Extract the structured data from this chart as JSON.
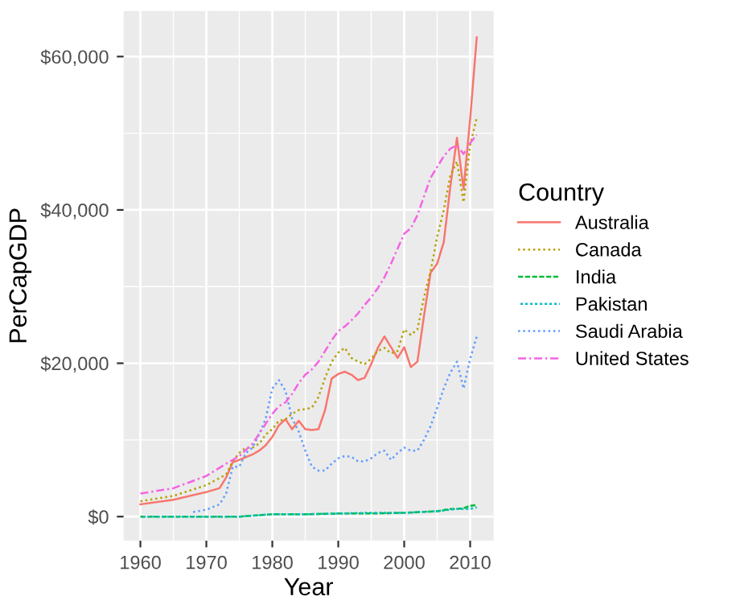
{
  "chart_data": {
    "type": "line",
    "xlabel": "Year",
    "ylabel": "PerCapGDP",
    "legend_title": "Country",
    "legend": "right",
    "grid": true,
    "xlim": [
      1957.45,
      2013.55
    ],
    "xticks": [
      1960,
      1970,
      1980,
      1990,
      2000,
      2010
    ],
    "ylim": [
      -3140,
      65940
    ],
    "yticks": [
      {
        "value": 0,
        "label": "$0"
      },
      {
        "value": 20000,
        "label": "$20,000"
      },
      {
        "value": 40000,
        "label": "$40,000"
      },
      {
        "value": 60000,
        "label": "$60,000"
      }
    ],
    "series": [
      {
        "name": "Australia",
        "color": "#f8766d",
        "line_style": "solid",
        "x": [
          1960,
          1965,
          1970,
          1972,
          1973,
          1974,
          1975,
          1977,
          1978,
          1979,
          1980,
          1981,
          1982,
          1983,
          1984,
          1985,
          1986,
          1987,
          1988,
          1989,
          1990,
          1991,
          1992,
          1993,
          1994,
          1995,
          1996,
          1997,
          1998,
          1999,
          2000,
          2001,
          2002,
          2003,
          2004,
          2005,
          2006,
          2007,
          2008,
          2009,
          2010,
          2011
        ],
        "values": [
          1600,
          2200,
          3200,
          3700,
          5100,
          7100,
          7400,
          8100,
          8600,
          9300,
          10400,
          11900,
          12700,
          11400,
          12500,
          11400,
          11300,
          11400,
          13900,
          18000,
          18600,
          18900,
          18500,
          17800,
          18100,
          19900,
          22000,
          23500,
          22100,
          20700,
          22100,
          19500,
          20200,
          26200,
          31800,
          33000,
          35800,
          43100,
          49400,
          42700,
          51900,
          62500
        ]
      },
      {
        "name": "Canada",
        "color": "#b79f00",
        "line_style": "dotted",
        "x": [
          1960,
          1965,
          1970,
          1973,
          1974,
          1975,
          1976,
          1977,
          1978,
          1979,
          1980,
          1981,
          1982,
          1983,
          1984,
          1985,
          1986,
          1987,
          1988,
          1989,
          1990,
          1991,
          1992,
          1993,
          1994,
          1995,
          1996,
          1997,
          1998,
          1999,
          2000,
          2001,
          2002,
          2003,
          2004,
          2005,
          2006,
          2007,
          2008,
          2009,
          2010,
          2011
        ],
        "values": [
          2000,
          2700,
          4100,
          5500,
          7200,
          8300,
          9000,
          9000,
          9500,
          10700,
          11400,
          12500,
          12700,
          13400,
          13900,
          14000,
          14200,
          15600,
          18100,
          20200,
          21400,
          22000,
          20700,
          20200,
          19900,
          20600,
          21600,
          22000,
          21300,
          21600,
          24400,
          23700,
          24400,
          28600,
          32000,
          36500,
          40000,
          44500,
          46300,
          41000,
          48500,
          52000
        ]
      },
      {
        "name": "India",
        "color": "#00ba38",
        "line_style": "dashed",
        "x": [
          1960,
          1965,
          1970,
          1975,
          1980,
          1985,
          1990,
          1995,
          2000,
          2005,
          2007,
          2008,
          2009,
          2010,
          2011
        ],
        "values": [
          0,
          0,
          0,
          0,
          300,
          300,
          400,
          400,
          500,
          700,
          1000,
          1000,
          1100,
          1400,
          1500
        ]
      },
      {
        "name": "Pakistan",
        "color": "#00bfc4",
        "line_style": "dashed",
        "x": [
          1960,
          1965,
          1970,
          1975,
          1980,
          1985,
          1990,
          1995,
          2000,
          2005,
          2008,
          2009,
          2010,
          2011
        ],
        "values": [
          0,
          0,
          0,
          0,
          300,
          300,
          400,
          500,
          500,
          700,
          1000,
          1000,
          1000,
          1200
        ]
      },
      {
        "name": "Saudi Arabia",
        "color": "#619cff",
        "line_style": "dotted",
        "x": [
          1968,
          1970,
          1972,
          1973,
          1974,
          1975,
          1976,
          1977,
          1978,
          1979,
          1980,
          1981,
          1982,
          1983,
          1984,
          1985,
          1986,
          1987,
          1988,
          1989,
          1990,
          1991,
          1992,
          1993,
          1994,
          1995,
          1996,
          1997,
          1998,
          1999,
          2000,
          2001,
          2002,
          2003,
          2004,
          2005,
          2006,
          2007,
          2008,
          2009,
          2010,
          2011
        ],
        "values": [
          600,
          900,
          1600,
          3000,
          6500,
          6500,
          8300,
          9000,
          10700,
          12800,
          16700,
          17800,
          16400,
          12800,
          11100,
          8600,
          6500,
          6000,
          6000,
          6900,
          7600,
          7900,
          7800,
          7200,
          7200,
          7600,
          8300,
          8600,
          7400,
          8300,
          9000,
          8600,
          8600,
          10000,
          11800,
          14200,
          16700,
          18800,
          20200,
          16700,
          20600,
          23500
        ]
      },
      {
        "name": "United States",
        "color": "#f564e3",
        "line_style": "dashdot",
        "x": [
          1960,
          1965,
          1970,
          1973,
          1975,
          1977,
          1979,
          1980,
          1981,
          1982,
          1983,
          1984,
          1985,
          1986,
          1987,
          1988,
          1989,
          1990,
          1991,
          1992,
          1993,
          1994,
          1995,
          1996,
          1997,
          1998,
          2000,
          2001,
          2002,
          2004,
          2006,
          2007,
          2008,
          2009,
          2010,
          2011
        ],
        "values": [
          3000,
          3700,
          5300,
          6900,
          7900,
          9500,
          12100,
          13400,
          14400,
          14900,
          16000,
          17400,
          18500,
          19200,
          20200,
          21600,
          23000,
          24200,
          24800,
          25600,
          26500,
          27600,
          28600,
          29800,
          31200,
          33000,
          36900,
          37600,
          39300,
          44200,
          47000,
          48000,
          48400,
          47300,
          48700,
          49800
        ]
      }
    ]
  }
}
